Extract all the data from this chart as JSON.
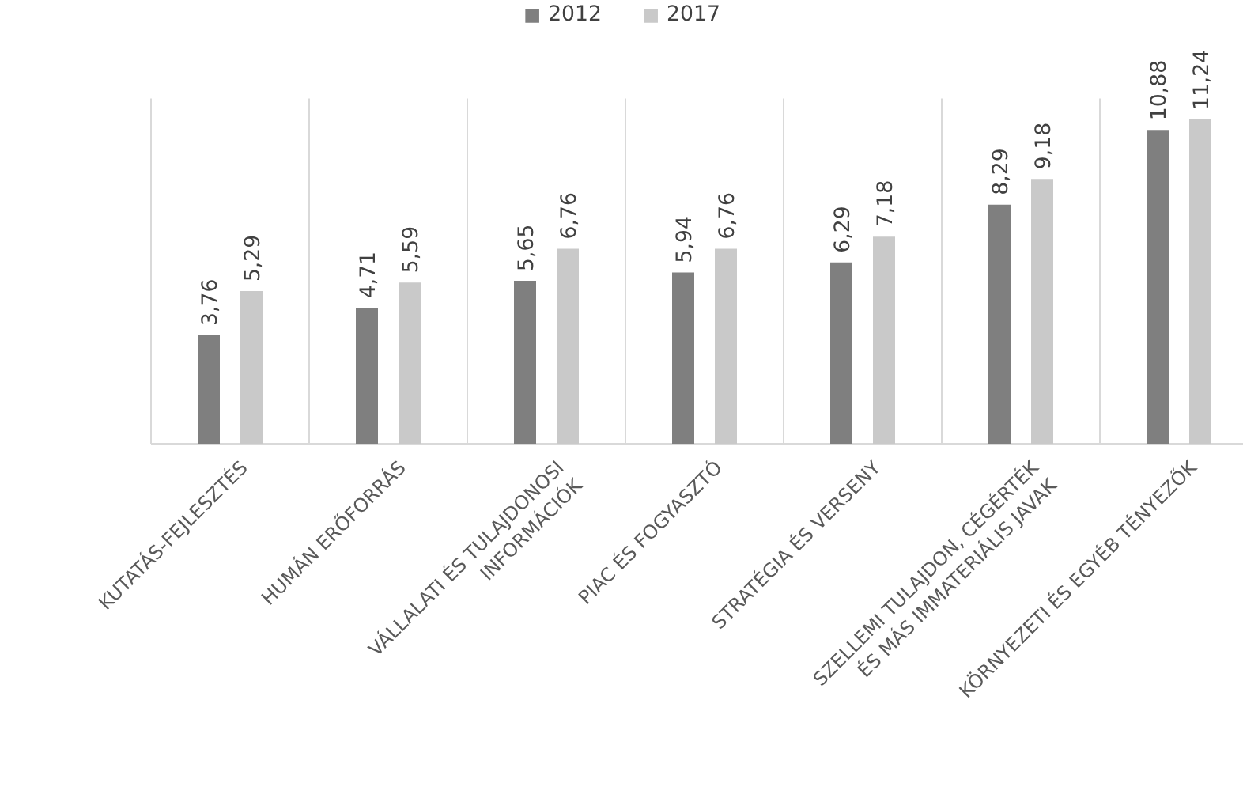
{
  "chart_data": {
    "type": "bar",
    "categories": [
      "KUTATÁS-FEJLESZTÉS",
      "HUMÁN ERŐFORRÁS",
      "VÁLLALATI ÉS TULAJDONOSI\nINFORMÁCIÓK",
      "PIAC ÉS FOGYASZTÓ",
      "STRATÉGIA ÉS VERSENY",
      "SZELLEMI TULAJDON, CÉGÉRTÉK\nÉS MÁS IMMATERIÁLIS JAVAK",
      "KÖRNYEZETI ÉS EGYÉB TÉNYEZŐK"
    ],
    "series": [
      {
        "name": "2012",
        "color": "#7f7f7f",
        "values": [
          3.76,
          4.71,
          5.65,
          5.94,
          6.29,
          8.29,
          10.88
        ],
        "value_labels": [
          "3,76",
          "4,71",
          "5,65",
          "5,94",
          "6,29",
          "8,29",
          "10,88"
        ]
      },
      {
        "name": "2017",
        "color": "#c9c9c9",
        "values": [
          5.29,
          5.59,
          6.76,
          6.76,
          7.18,
          9.18,
          11.24
        ],
        "value_labels": [
          "5,29",
          "5,59",
          "6,76",
          "6,76",
          "7,18",
          "9,18",
          "11,24"
        ]
      }
    ],
    "grid": "x",
    "legend": "top"
  }
}
